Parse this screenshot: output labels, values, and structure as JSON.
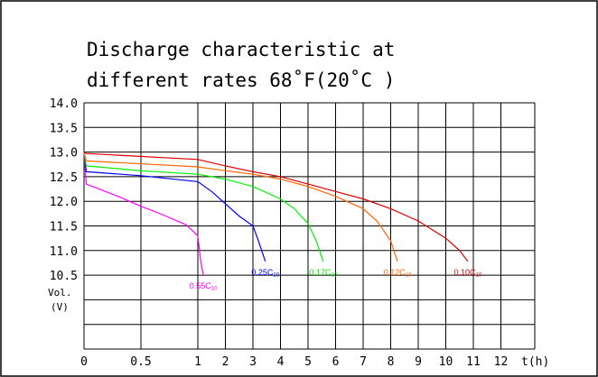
{
  "chart_data": {
    "type": "line",
    "title_line1": "Discharge characteristic at",
    "title_line2": "different rates 68˚F(20˚C )",
    "xlabel": "t(h)",
    "ylabel_line1": "Vol.",
    "ylabel_line2": "(V)",
    "x_ticks": [
      "0",
      "0.5",
      "1",
      "2",
      "3",
      "4",
      "5",
      "6",
      "7",
      "8",
      "9",
      "10",
      "11",
      "12"
    ],
    "y_ticks": [
      "14.0",
      "13.5",
      "13.0",
      "12.5",
      "12.0",
      "11.5",
      "11.0",
      "10.5"
    ],
    "ylim": [
      9.0,
      14.0
    ],
    "grid": true,
    "series": [
      {
        "name": "0.55C10",
        "label_main": "0.55C",
        "label_sub": "10",
        "color": "#ff00ff",
        "points": [
          [
            0,
            13.0
          ],
          [
            0.02,
            12.35
          ],
          [
            0.1,
            12.28
          ],
          [
            0.3,
            12.1
          ],
          [
            0.5,
            11.9
          ],
          [
            0.7,
            11.72
          ],
          [
            0.9,
            11.52
          ],
          [
            1.0,
            11.3
          ],
          [
            1.1,
            10.8
          ],
          [
            1.2,
            10.5
          ]
        ]
      },
      {
        "name": "0.25C10",
        "label_main": "0.25C",
        "label_sub": "10",
        "color": "#0000ff",
        "points": [
          [
            0,
            13.0
          ],
          [
            0.02,
            12.6
          ],
          [
            0.5,
            12.52
          ],
          [
            1.0,
            12.4
          ],
          [
            1.5,
            12.2
          ],
          [
            2.0,
            11.95
          ],
          [
            2.5,
            11.7
          ],
          [
            3.0,
            11.5
          ],
          [
            3.2,
            11.2
          ],
          [
            3.45,
            10.78
          ]
        ]
      },
      {
        "name": "0.17C10",
        "label_main": "0.17C",
        "label_sub": "10",
        "color": "#00ee00",
        "points": [
          [
            0,
            13.0
          ],
          [
            0.02,
            12.72
          ],
          [
            0.5,
            12.62
          ],
          [
            1.0,
            12.55
          ],
          [
            2.0,
            12.45
          ],
          [
            3.0,
            12.3
          ],
          [
            4.0,
            12.05
          ],
          [
            4.5,
            11.85
          ],
          [
            5.0,
            11.55
          ],
          [
            5.3,
            11.2
          ],
          [
            5.55,
            10.78
          ]
        ]
      },
      {
        "name": "0.12C10",
        "label_main": "0.12C",
        "label_sub": "10",
        "color": "#ff6600",
        "points": [
          [
            0,
            13.0
          ],
          [
            0.02,
            12.82
          ],
          [
            1.0,
            12.7
          ],
          [
            2.0,
            12.62
          ],
          [
            3.0,
            12.55
          ],
          [
            4.0,
            12.45
          ],
          [
            5.0,
            12.3
          ],
          [
            6.0,
            12.1
          ],
          [
            7.0,
            11.85
          ],
          [
            7.5,
            11.6
          ],
          [
            8.0,
            11.2
          ],
          [
            8.25,
            10.78
          ]
        ]
      },
      {
        "name": "0.10C10",
        "label_main": "0.10C",
        "label_sub": "10",
        "color": "#dd0000",
        "points": [
          [
            0,
            13.0
          ],
          [
            0.02,
            12.97
          ],
          [
            1.0,
            12.85
          ],
          [
            2.0,
            12.72
          ],
          [
            3.0,
            12.6
          ],
          [
            4.0,
            12.5
          ],
          [
            5.0,
            12.35
          ],
          [
            6.0,
            12.2
          ],
          [
            7.0,
            12.05
          ],
          [
            8.0,
            11.85
          ],
          [
            9.0,
            11.6
          ],
          [
            10.0,
            11.25
          ],
          [
            10.5,
            11.0
          ],
          [
            10.8,
            10.78
          ]
        ]
      }
    ]
  }
}
